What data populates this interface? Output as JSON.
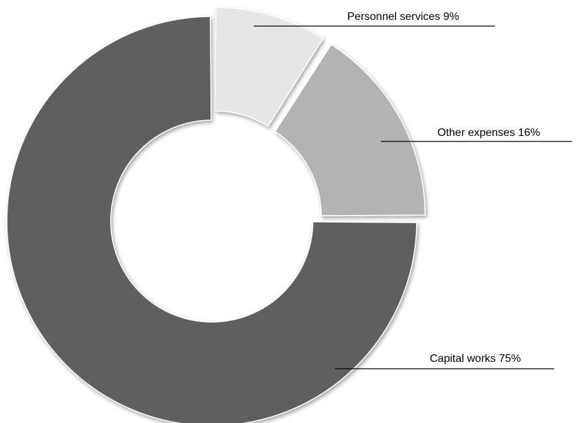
{
  "chart_data": {
    "type": "pie",
    "variant": "donut",
    "title": "",
    "exploded_slices": [
      "Personnel services",
      "Other expenses"
    ],
    "slices": [
      {
        "name": "Personnel services",
        "value": 9,
        "label": "Personnel services 9%",
        "color": "#e6e6e6"
      },
      {
        "name": "Other expenses",
        "value": 16,
        "label": "Other expenses 16%",
        "color": "#b3b3b3"
      },
      {
        "name": "Capital works",
        "value": 75,
        "label": "Capital works 75%",
        "color": "#5e5e5e"
      }
    ],
    "legend": "none"
  }
}
